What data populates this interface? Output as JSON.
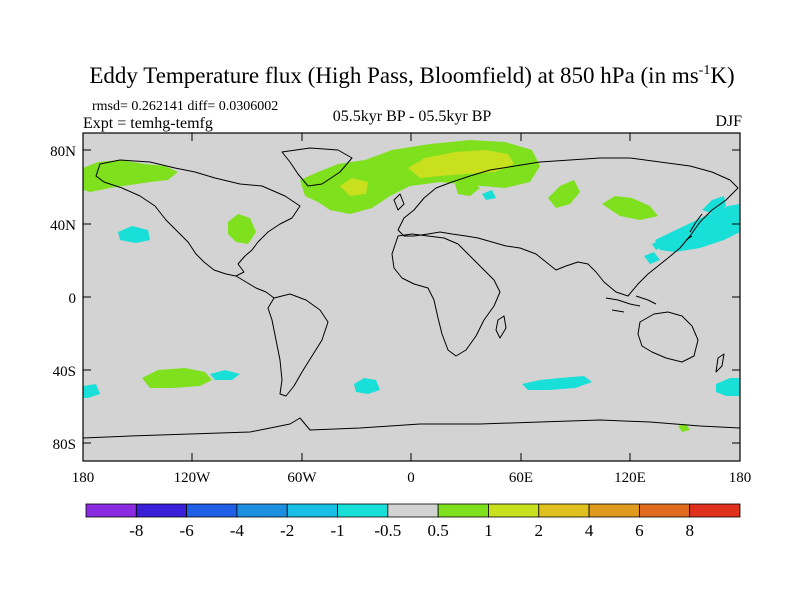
{
  "title": {
    "main": "Eddy Temperature flux (High Pass, Bloomfield) at 850 hPa (in ms",
    "sup": "-1",
    "end": "K)"
  },
  "stats": "rmsd= 0.262141 diff= 0.0306002",
  "experiment": "Expt = temhg-temfg",
  "period": "05.5kyr BP - 05.5kyr BP",
  "season": "DJF",
  "map": {
    "y_ticks": [
      "80N",
      "40N",
      "0",
      "40S",
      "80S"
    ],
    "x_ticks": [
      "180",
      "120W",
      "60W",
      "0",
      "60E",
      "120E",
      "180"
    ],
    "ocean_color": "#d3d3d3"
  },
  "colorbar": {
    "colors": [
      "#8a2be2",
      "#3a1fd8",
      "#1e5fe6",
      "#1c8fe0",
      "#18bfe6",
      "#18e0d8",
      "#d3d3d3",
      "#7fe01e",
      "#c8e01e",
      "#e0c01e",
      "#e09a1e",
      "#e06a1e",
      "#e0301e"
    ],
    "labels": [
      "-8",
      "-6",
      "-4",
      "-2",
      "-1",
      "-0.5",
      "0.5",
      "1",
      "2",
      "4",
      "6",
      "8"
    ]
  }
}
